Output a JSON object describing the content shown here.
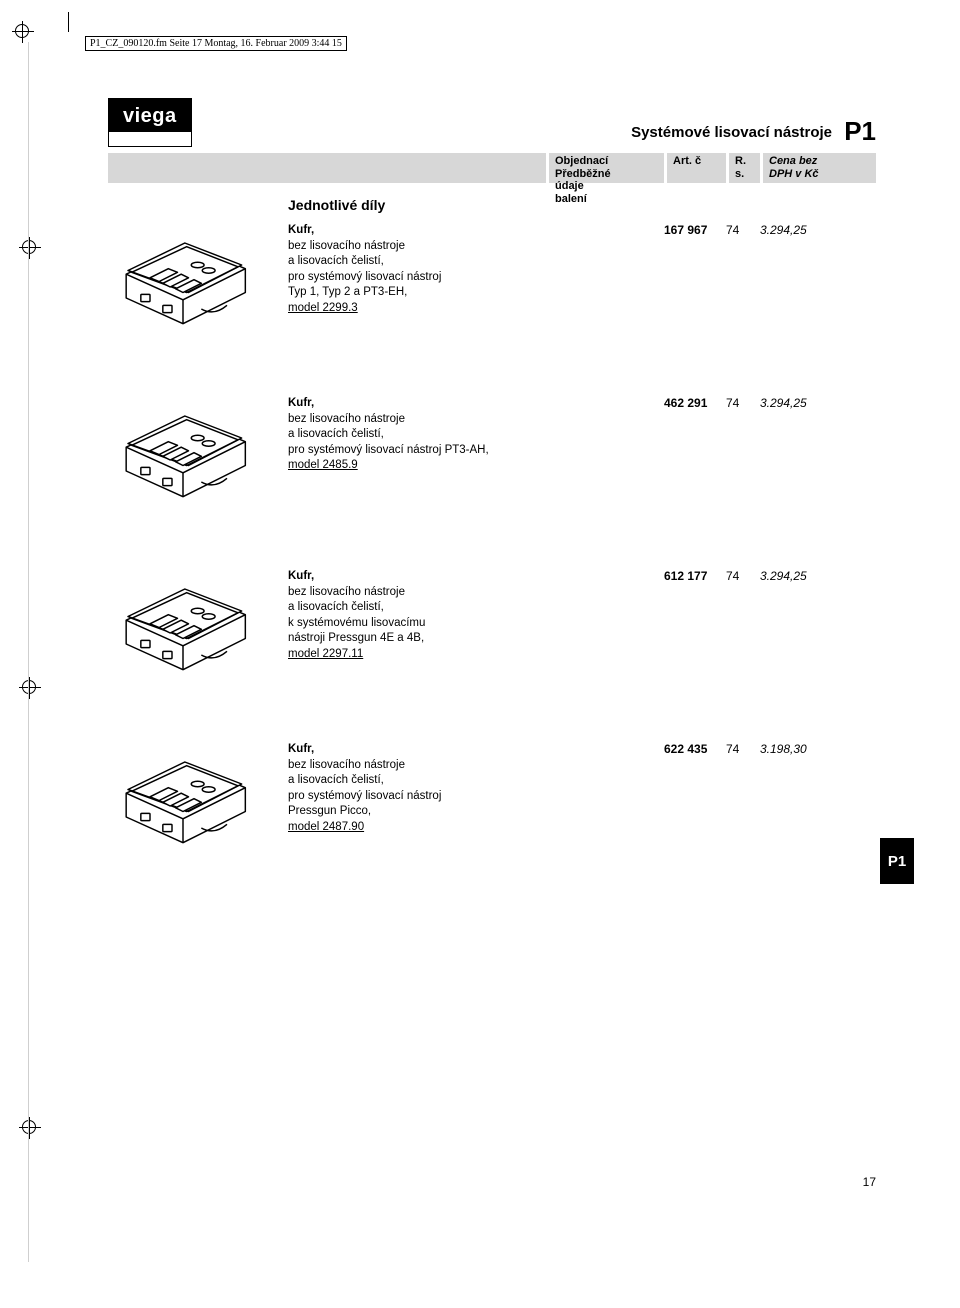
{
  "printmark": "P1_CZ_090120.fm  Seite 17  Montag, 16. Februar 2009  3:44 15",
  "brand": "viega",
  "page_title": "Systémové lisovací nástroje",
  "page_code": "P1",
  "header": {
    "c1a": "Objednací",
    "c1b": "údaje",
    "c2a": "Předběžné",
    "c2b": "balení",
    "c3a": "Art. č",
    "c4a": "R.",
    "c4b": "s.",
    "c5a": "Cena bez",
    "c5b": "DPH v Kč"
  },
  "section_title": "Jednotlivé díly",
  "items": [
    {
      "name": "Kufr,",
      "l1": "bez lisovacího nástroje",
      "l2": "a lisovacích čelistí,",
      "l3": "pro systémový lisovací nástroj",
      "l4": "Typ 1, Typ 2 a PT3-EH,",
      "model": "model 2299.3",
      "art": "167 967",
      "rs": "74",
      "price": "3.294,25"
    },
    {
      "name": "Kufr,",
      "l1": "bez lisovacího nástroje",
      "l2": "a lisovacích čelistí,",
      "l3": "pro systémový lisovací nástroj PT3-AH,",
      "l4": "",
      "model": "model 2485.9",
      "art": "462 291",
      "rs": "74",
      "price": "3.294,25"
    },
    {
      "name": "Kufr,",
      "l1": "bez lisovacího nástroje",
      "l2": "a lisovacích čelistí,",
      "l3": "k systémovému lisovacímu",
      "l4": "nástroji Pressgun 4E a 4B,",
      "model": "model 2297.11",
      "art": "612 177",
      "rs": "74",
      "price": "3.294,25"
    },
    {
      "name": "Kufr,",
      "l1": "bez lisovacího nástroje",
      "l2": "a lisovacích čelistí,",
      "l3": "pro systémový lisovací nástroj",
      "l4": "Pressgun Picco,",
      "model": "model 2487.90",
      "art": "622 435",
      "rs": "74",
      "price": "3.198,30"
    }
  ],
  "side_tab": "P1",
  "page_num": "17",
  "colors": {
    "band": "#d7d7d7",
    "black": "#000000"
  }
}
